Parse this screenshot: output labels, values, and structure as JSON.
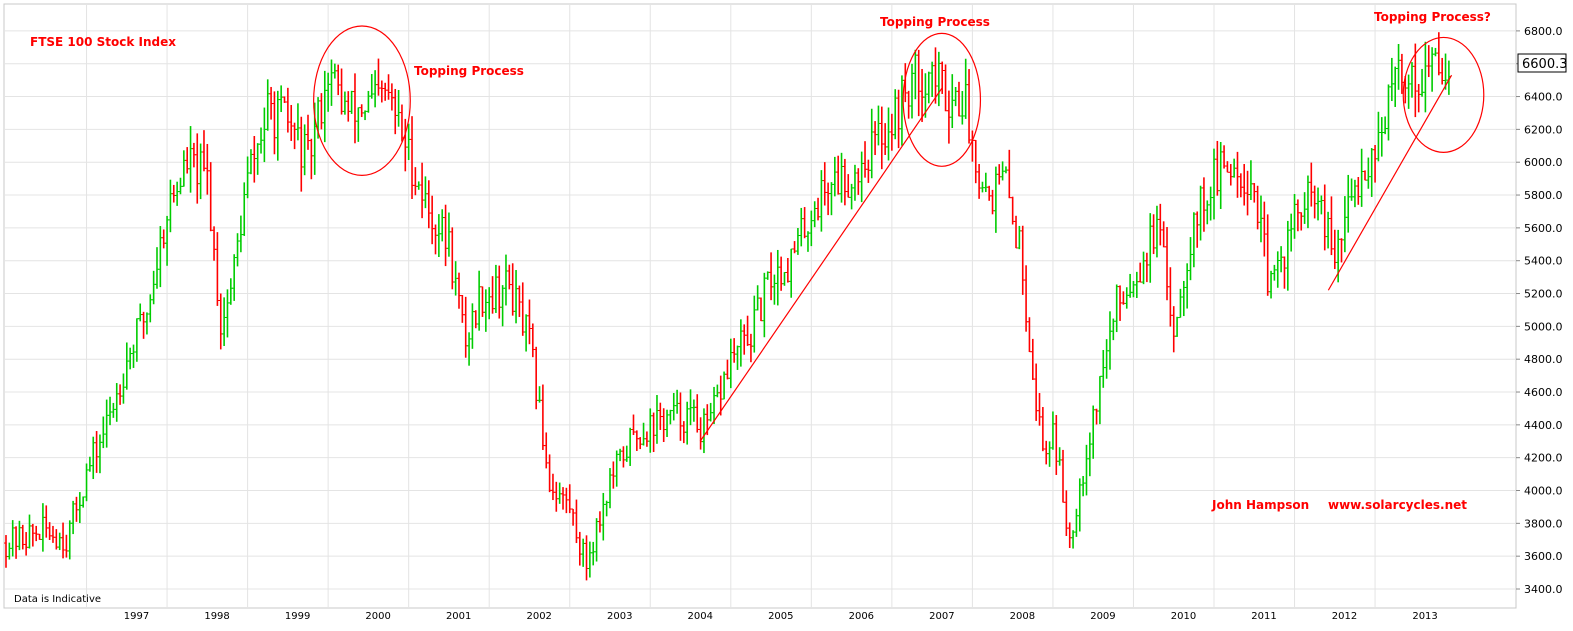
{
  "chart_data": {
    "type": "ohlc",
    "title": "FTSE 100 Stock Index",
    "annotations": [
      {
        "name": "title",
        "text": "FTSE 100 Stock Index"
      },
      {
        "name": "topping-1",
        "text": "Topping Process"
      },
      {
        "name": "topping-2",
        "text": "Topping Process"
      },
      {
        "name": "topping-3",
        "text": "Topping Process?"
      },
      {
        "name": "author",
        "text": "John Hampson"
      },
      {
        "name": "website",
        "text": "www.solarcycles.net"
      }
    ],
    "note": "Data is Indicative",
    "last_price_label": "6600.3",
    "ylim": [
      3300,
      6900
    ],
    "y_ticks": [
      3400,
      3600,
      3800,
      4000,
      4200,
      4400,
      4600,
      4800,
      5000,
      5200,
      5400,
      5600,
      5800,
      6000,
      6200,
      6400,
      6600,
      6800
    ],
    "x_ticks": [
      {
        "label": "1997",
        "t": 1997.0
      },
      {
        "label": "1998",
        "t": 1998.0
      },
      {
        "label": "1999",
        "t": 1999.0
      },
      {
        "label": "2000",
        "t": 2000.0
      },
      {
        "label": "2001",
        "t": 2001.0
      },
      {
        "label": "2002",
        "t": 2002.0
      },
      {
        "label": "2003",
        "t": 2003.0
      },
      {
        "label": "2004",
        "t": 2004.0
      },
      {
        "label": "2005",
        "t": 2005.0
      },
      {
        "label": "2006",
        "t": 2006.0
      },
      {
        "label": "2007",
        "t": 2007.0
      },
      {
        "label": "2008",
        "t": 2008.0
      },
      {
        "label": "2009",
        "t": 2009.0
      },
      {
        "label": "2010",
        "t": 2010.0
      },
      {
        "label": "2011",
        "t": 2011.0
      },
      {
        "label": "2012",
        "t": 2012.0
      },
      {
        "label": "2013",
        "t": 2013.0
      }
    ],
    "xlim": [
      1996.0,
      2014.75
    ],
    "up_color": "#00cc00",
    "down_color": "#ff0000",
    "trendline_color": "#ff0000",
    "grid": true,
    "price_path": [
      [
        1996.0,
        3680
      ],
      [
        1996.5,
        3760
      ],
      [
        1996.75,
        3700
      ],
      [
        1997.0,
        4100
      ],
      [
        1997.25,
        4400
      ],
      [
        1997.5,
        4800
      ],
      [
        1997.75,
        5100
      ],
      [
        1998.0,
        5700
      ],
      [
        1998.25,
        6000
      ],
      [
        1998.5,
        5900
      ],
      [
        1998.67,
        5000
      ],
      [
        1998.8,
        5250
      ],
      [
        1999.0,
        5900
      ],
      [
        1999.25,
        6300
      ],
      [
        1999.5,
        6250
      ],
      [
        1999.75,
        6000
      ],
      [
        2000.0,
        6550
      ],
      [
        2000.25,
        6300
      ],
      [
        2000.5,
        6350
      ],
      [
        2000.75,
        6400
      ],
      [
        2001.0,
        6050
      ],
      [
        2001.25,
        5700
      ],
      [
        2001.5,
        5500
      ],
      [
        2001.7,
        4900
      ],
      [
        2001.9,
        5200
      ],
      [
        2002.0,
        5200
      ],
      [
        2002.25,
        5250
      ],
      [
        2002.5,
        4900
      ],
      [
        2002.75,
        4050
      ],
      [
        2003.0,
        3900
      ],
      [
        2003.2,
        3550
      ],
      [
        2003.5,
        4050
      ],
      [
        2003.75,
        4300
      ],
      [
        2004.0,
        4400
      ],
      [
        2004.25,
        4450
      ],
      [
        2004.5,
        4450
      ],
      [
        2004.7,
        4350
      ],
      [
        2005.0,
        4800
      ],
      [
        2005.25,
        4950
      ],
      [
        2005.5,
        5300
      ],
      [
        2005.75,
        5400
      ],
      [
        2006.0,
        5700
      ],
      [
        2006.25,
        5900
      ],
      [
        2006.5,
        5900
      ],
      [
        2006.75,
        6100
      ],
      [
        2007.0,
        6250
      ],
      [
        2007.25,
        6500
      ],
      [
        2007.5,
        6550
      ],
      [
        2007.7,
        6400
      ],
      [
        2007.9,
        6400
      ],
      [
        2008.0,
        6100
      ],
      [
        2008.2,
        5800
      ],
      [
        2008.4,
        5900
      ],
      [
        2008.6,
        5450
      ],
      [
        2008.8,
        4500
      ],
      [
        2008.9,
        4200
      ],
      [
        2009.0,
        4400
      ],
      [
        2009.2,
        3700
      ],
      [
        2009.4,
        4200
      ],
      [
        2009.6,
        4700
      ],
      [
        2009.8,
        5150
      ],
      [
        2010.0,
        5300
      ],
      [
        2010.3,
        5600
      ],
      [
        2010.5,
        5000
      ],
      [
        2010.75,
        5650
      ],
      [
        2011.0,
        5900
      ],
      [
        2011.25,
        6000
      ],
      [
        2011.5,
        5850
      ],
      [
        2011.7,
        5200
      ],
      [
        2011.9,
        5500
      ],
      [
        2012.0,
        5650
      ],
      [
        2012.25,
        5800
      ],
      [
        2012.5,
        5400
      ],
      [
        2012.75,
        5850
      ],
      [
        2013.0,
        6100
      ],
      [
        2013.3,
        6550
      ],
      [
        2013.5,
        6500
      ],
      [
        2013.75,
        6600
      ],
      [
        2013.95,
        6600
      ]
    ],
    "trendlines": [
      {
        "from": [
          2004.62,
          4300
        ],
        "to": [
          2007.62,
          6450
        ]
      },
      {
        "from": [
          2012.42,
          5220
        ],
        "to": [
          2013.95,
          6530
        ]
      }
    ],
    "circles": [
      {
        "center": [
          2000.42,
          6375
        ],
        "r_years": 0.6,
        "r_points": 455
      },
      {
        "center": [
          2007.62,
          6380
        ],
        "r_years": 0.48,
        "r_points": 405
      },
      {
        "center": [
          2013.85,
          6410
        ],
        "r_years": 0.5,
        "r_points": 350
      }
    ]
  }
}
